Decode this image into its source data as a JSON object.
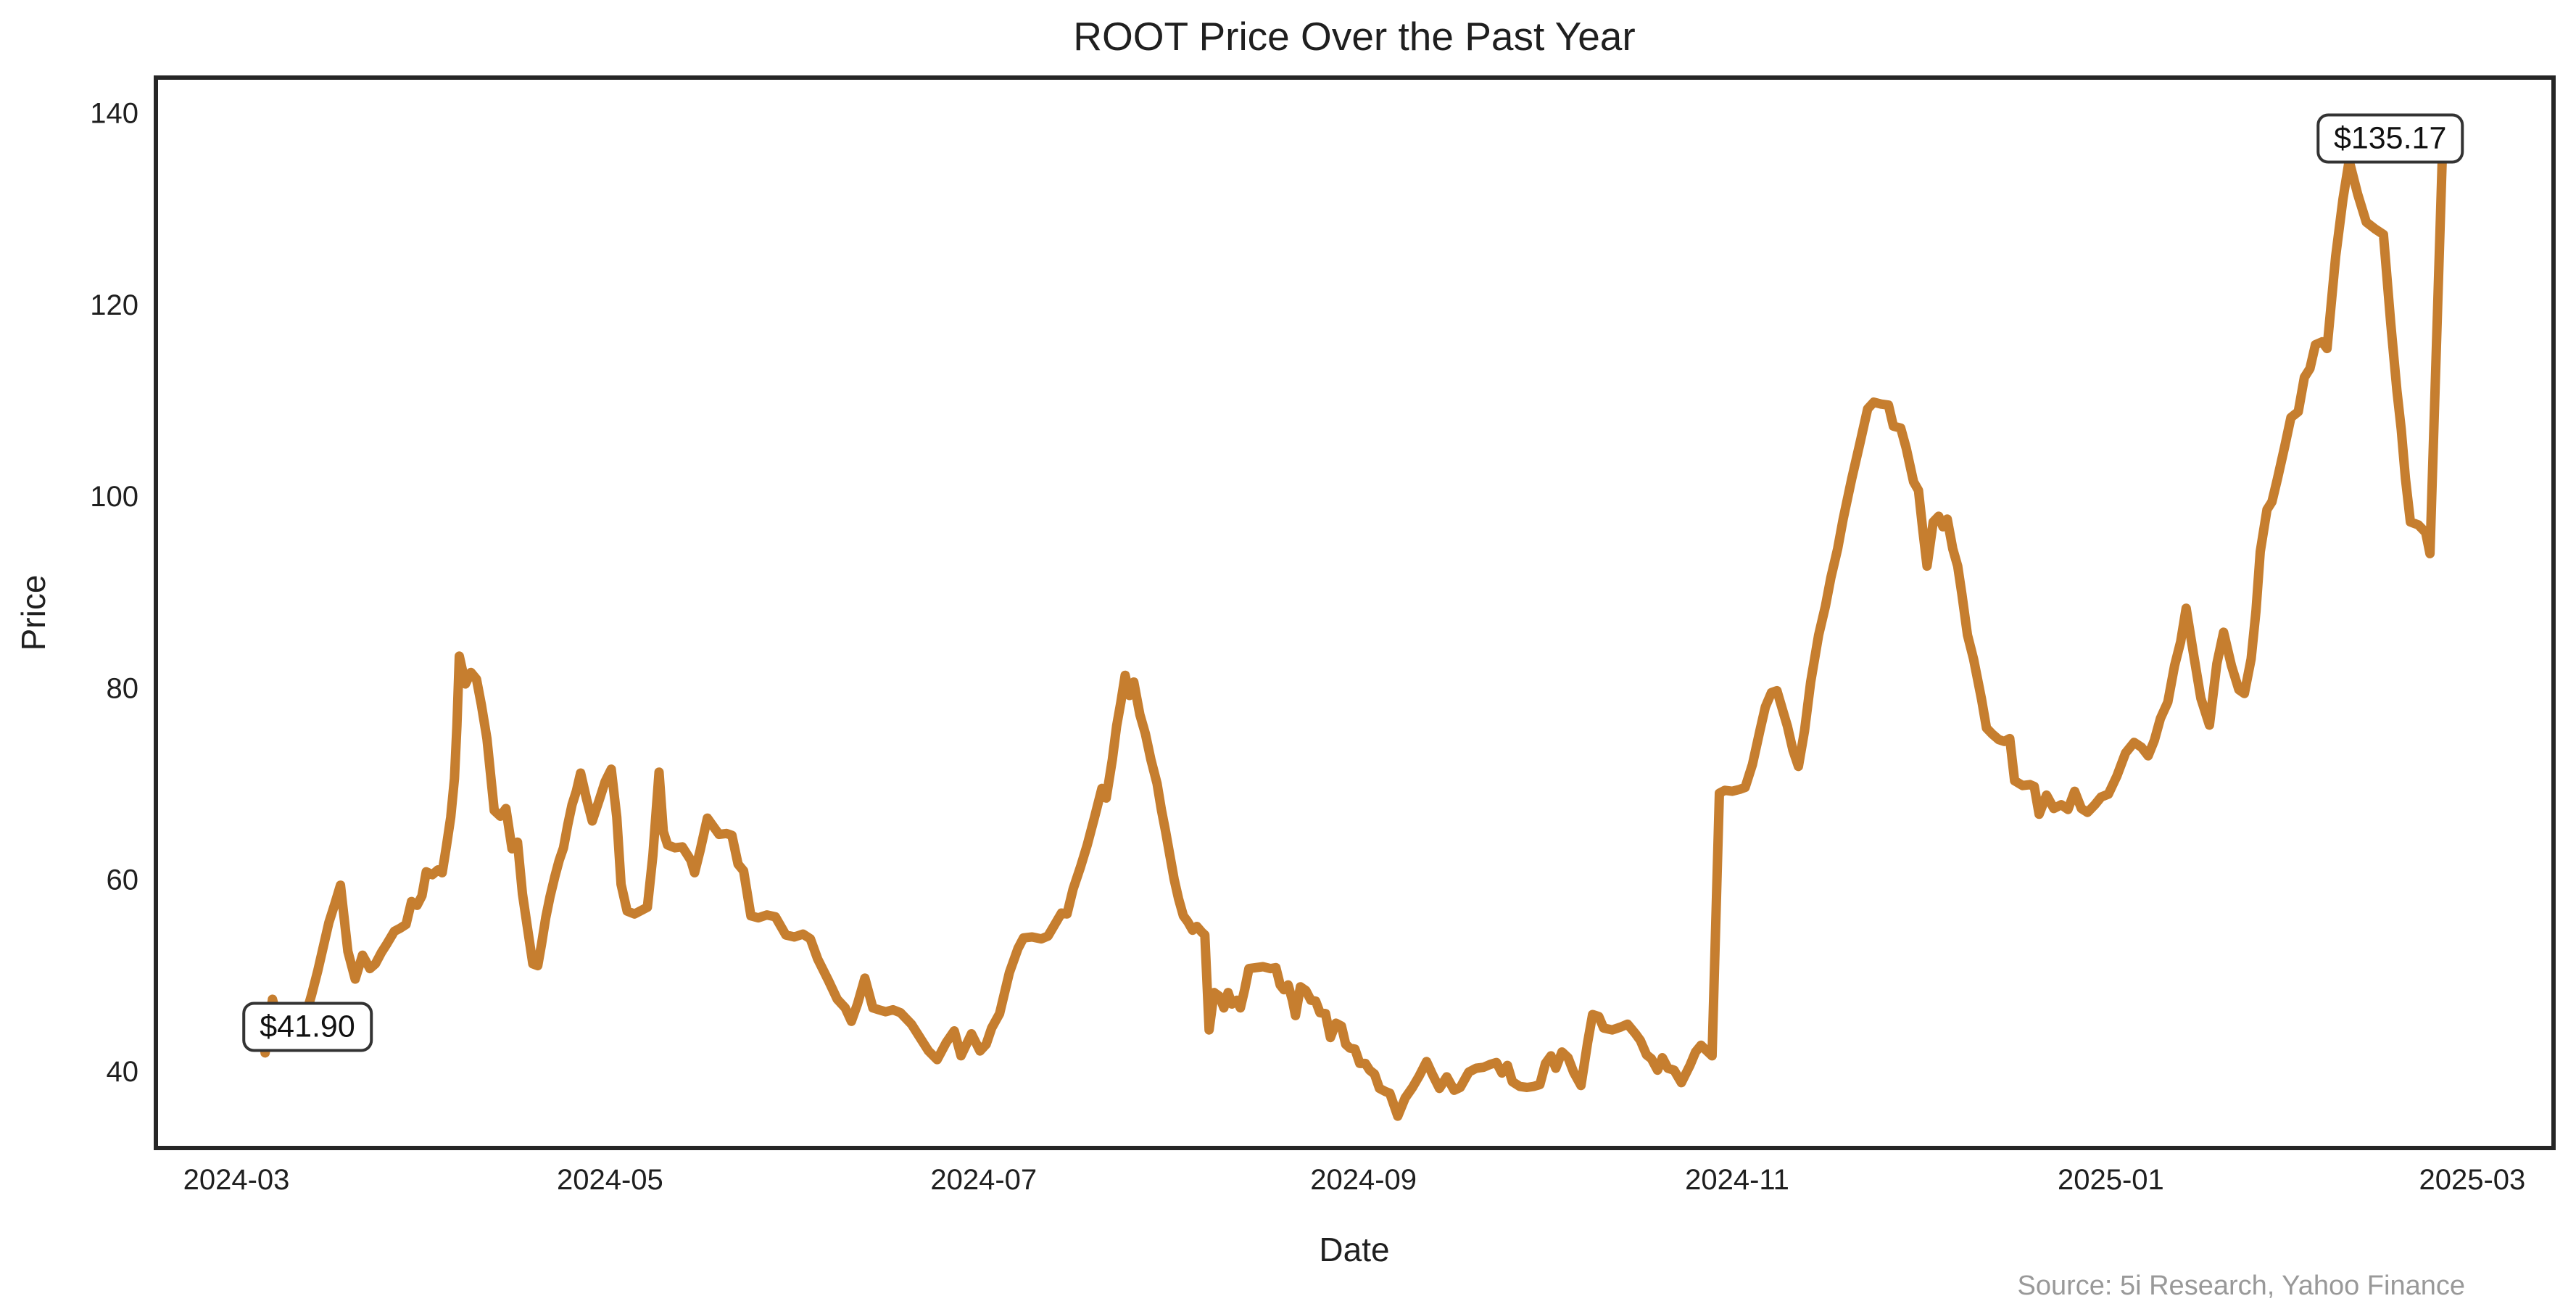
{
  "chart_data": {
    "type": "line",
    "title": "ROOT Price Over the Past Year",
    "xlabel": "Date",
    "ylabel": "Price",
    "source": "Source: 5i Research, Yahoo Finance",
    "legend": null,
    "grid": false,
    "ylim": [
      32,
      143.6
    ],
    "y_ticks": [
      40,
      60,
      80,
      100,
      120,
      140
    ],
    "x_ticks": [
      {
        "label": "2024-03",
        "d": 0
      },
      {
        "label": "2024-05",
        "d": 61
      },
      {
        "label": "2024-07",
        "d": 122
      },
      {
        "label": "2024-09",
        "d": 184
      },
      {
        "label": "2024-11",
        "d": 245
      },
      {
        "label": "2025-01",
        "d": 306
      },
      {
        "label": "2025-03",
        "d": 365
      }
    ],
    "x_origin": "2024-03-01",
    "annotations": [
      {
        "text": "$41.90",
        "d": 11.6,
        "price": 44.6
      },
      {
        "text": "$135.17",
        "d": 351.6,
        "price": 137.3
      }
    ],
    "colors": {
      "line": "#C67E2F",
      "spine": "#262626",
      "text": "#1f1f1f",
      "muted": "#999999",
      "annotation_border": "#333333"
    },
    "series_name": "ROOT close price (USD)",
    "series": [
      [
        3.8,
        46.5
      ],
      [
        4.7,
        41.9
      ],
      [
        5.9,
        47.5
      ],
      [
        6.9,
        45.0
      ],
      [
        8.0,
        45.3
      ],
      [
        9.0,
        44.8
      ],
      [
        10.2,
        45.2
      ],
      [
        11.4,
        46.0
      ],
      [
        12.3,
        48.0
      ],
      [
        13.3,
        50.5
      ],
      [
        14.2,
        53.0
      ],
      [
        15.1,
        55.5
      ],
      [
        16.1,
        57.5
      ],
      [
        17.0,
        59.4
      ],
      [
        18.2,
        52.5
      ],
      [
        19.4,
        49.6
      ],
      [
        20.6,
        52.1
      ],
      [
        21.8,
        50.7
      ],
      [
        22.7,
        51.2
      ],
      [
        23.7,
        52.4
      ],
      [
        24.6,
        53.3
      ],
      [
        25.8,
        54.6
      ],
      [
        26.7,
        54.9
      ],
      [
        27.7,
        55.3
      ],
      [
        28.6,
        57.7
      ],
      [
        29.5,
        57.3
      ],
      [
        30.3,
        58.3
      ],
      [
        31.0,
        60.8
      ],
      [
        32.0,
        60.5
      ],
      [
        32.9,
        61.0
      ],
      [
        33.6,
        60.7
      ],
      [
        34.3,
        63.5
      ],
      [
        35.0,
        66.5
      ],
      [
        35.6,
        70.5
      ],
      [
        36.0,
        76.0
      ],
      [
        36.4,
        83.3
      ],
      [
        37.4,
        80.4
      ],
      [
        38.3,
        81.6
      ],
      [
        39.2,
        80.9
      ],
      [
        40.0,
        78.2
      ],
      [
        40.9,
        74.7
      ],
      [
        42.1,
        67.2
      ],
      [
        43.1,
        66.6
      ],
      [
        44.0,
        67.4
      ],
      [
        45.0,
        63.2
      ],
      [
        45.9,
        63.9
      ],
      [
        46.7,
        58.5
      ],
      [
        47.6,
        54.6
      ],
      [
        48.4,
        51.2
      ],
      [
        49.2,
        51.0
      ],
      [
        49.8,
        53.2
      ],
      [
        50.5,
        56.0
      ],
      [
        51.2,
        58.2
      ],
      [
        52.0,
        60.3
      ],
      [
        52.7,
        62.0
      ],
      [
        53.4,
        63.3
      ],
      [
        54.1,
        65.7
      ],
      [
        54.8,
        67.8
      ],
      [
        55.5,
        69.2
      ],
      [
        56.2,
        71.1
      ],
      [
        57.2,
        68.3
      ],
      [
        58.1,
        66.1
      ],
      [
        59.3,
        68.4
      ],
      [
        60.2,
        70.2
      ],
      [
        61.2,
        71.5
      ],
      [
        62.1,
        66.5
      ],
      [
        62.8,
        59.5
      ],
      [
        63.8,
        56.7
      ],
      [
        65.0,
        56.4
      ],
      [
        66.2,
        56.8
      ],
      [
        67.1,
        57.1
      ],
      [
        68.0,
        62.5
      ],
      [
        69.0,
        71.2
      ],
      [
        69.7,
        65.0
      ],
      [
        70.4,
        63.6
      ],
      [
        71.6,
        63.3
      ],
      [
        72.8,
        63.4
      ],
      [
        74.2,
        62.0
      ],
      [
        74.8,
        60.7
      ],
      [
        75.7,
        63.0
      ],
      [
        76.9,
        66.4
      ],
      [
        77.9,
        65.5
      ],
      [
        78.8,
        64.7
      ],
      [
        80.0,
        64.8
      ],
      [
        80.9,
        64.6
      ],
      [
        81.9,
        61.6
      ],
      [
        82.8,
        60.9
      ],
      [
        84.0,
        56.2
      ],
      [
        85.2,
        56.0
      ],
      [
        86.6,
        56.3
      ],
      [
        88.0,
        56.1
      ],
      [
        89.7,
        54.2
      ],
      [
        91.1,
        54.0
      ],
      [
        92.5,
        54.3
      ],
      [
        93.7,
        53.8
      ],
      [
        94.9,
        51.7
      ],
      [
        96.7,
        49.4
      ],
      [
        98.1,
        47.5
      ],
      [
        99.4,
        46.6
      ],
      [
        100.4,
        45.2
      ],
      [
        101.4,
        47.0
      ],
      [
        102.6,
        49.7
      ],
      [
        103.9,
        46.6
      ],
      [
        104.9,
        46.4
      ],
      [
        106.0,
        46.2
      ],
      [
        107.2,
        46.4
      ],
      [
        108.4,
        46.1
      ],
      [
        110.2,
        44.9
      ],
      [
        111.9,
        43.2
      ],
      [
        113.0,
        42.1
      ],
      [
        114.4,
        41.2
      ],
      [
        115.9,
        43.0
      ],
      [
        117.2,
        44.2
      ],
      [
        118.3,
        41.6
      ],
      [
        120.0,
        43.9
      ],
      [
        121.4,
        42.1
      ],
      [
        122.4,
        42.8
      ],
      [
        123.3,
        44.5
      ],
      [
        124.6,
        46.0
      ],
      [
        126.2,
        50.3
      ],
      [
        127.6,
        52.8
      ],
      [
        128.5,
        53.9
      ],
      [
        129.9,
        54.0
      ],
      [
        131.4,
        53.8
      ],
      [
        132.5,
        54.1
      ],
      [
        133.7,
        55.4
      ],
      [
        134.7,
        56.5
      ],
      [
        135.6,
        56.4
      ],
      [
        136.6,
        59.0
      ],
      [
        137.8,
        61.3
      ],
      [
        138.9,
        63.6
      ],
      [
        140.1,
        66.5
      ],
      [
        141.3,
        69.5
      ],
      [
        142.0,
        68.5
      ],
      [
        143.0,
        72.5
      ],
      [
        143.7,
        76.0
      ],
      [
        144.4,
        78.5
      ],
      [
        145.1,
        81.3
      ],
      [
        145.8,
        79.2
      ],
      [
        146.5,
        80.6
      ],
      [
        147.5,
        77.2
      ],
      [
        148.4,
        75.2
      ],
      [
        149.3,
        72.5
      ],
      [
        150.3,
        70.0
      ],
      [
        151.0,
        67.3
      ],
      [
        151.7,
        65.0
      ],
      [
        152.4,
        62.5
      ],
      [
        153.1,
        60.0
      ],
      [
        153.8,
        58.0
      ],
      [
        154.6,
        56.2
      ],
      [
        155.3,
        55.6
      ],
      [
        156.1,
        54.7
      ],
      [
        156.8,
        55.1
      ],
      [
        157.6,
        54.5
      ],
      [
        158.1,
        54.2
      ],
      [
        158.8,
        44.3
      ],
      [
        159.6,
        48.2
      ],
      [
        160.5,
        47.8
      ],
      [
        161.2,
        46.6
      ],
      [
        161.9,
        48.2
      ],
      [
        162.5,
        47.0
      ],
      [
        163.3,
        47.4
      ],
      [
        163.9,
        46.6
      ],
      [
        164.6,
        48.5
      ],
      [
        165.3,
        50.7
      ],
      [
        166.4,
        50.8
      ],
      [
        167.6,
        50.9
      ],
      [
        168.8,
        50.7
      ],
      [
        169.7,
        50.8
      ],
      [
        170.4,
        49.0
      ],
      [
        171.0,
        48.5
      ],
      [
        171.7,
        49.0
      ],
      [
        172.4,
        47.4
      ],
      [
        172.9,
        45.8
      ],
      [
        173.7,
        48.8
      ],
      [
        174.6,
        48.4
      ],
      [
        175.4,
        47.4
      ],
      [
        176.2,
        47.3
      ],
      [
        176.9,
        46.1
      ],
      [
        177.8,
        46.0
      ],
      [
        178.6,
        43.5
      ],
      [
        179.5,
        45.0
      ],
      [
        180.4,
        44.7
      ],
      [
        181.1,
        42.8
      ],
      [
        181.8,
        42.4
      ],
      [
        182.6,
        42.3
      ],
      [
        183.4,
        40.8
      ],
      [
        184.3,
        40.8
      ],
      [
        185.0,
        40.1
      ],
      [
        185.8,
        39.7
      ],
      [
        186.6,
        38.2
      ],
      [
        187.5,
        37.9
      ],
      [
        188.3,
        37.7
      ],
      [
        189.6,
        35.3
      ],
      [
        190.8,
        37.2
      ],
      [
        192.0,
        38.3
      ],
      [
        193.1,
        39.5
      ],
      [
        194.3,
        41.0
      ],
      [
        195.3,
        39.6
      ],
      [
        196.4,
        38.2
      ],
      [
        197.6,
        39.4
      ],
      [
        198.8,
        38.0
      ],
      [
        199.8,
        38.3
      ],
      [
        201.2,
        39.9
      ],
      [
        202.4,
        40.3
      ],
      [
        203.6,
        40.4
      ],
      [
        204.7,
        40.7
      ],
      [
        205.7,
        40.9
      ],
      [
        206.6,
        39.8
      ],
      [
        207.5,
        40.6
      ],
      [
        208.3,
        38.9
      ],
      [
        209.5,
        38.4
      ],
      [
        210.7,
        38.3
      ],
      [
        211.8,
        38.4
      ],
      [
        212.8,
        38.6
      ],
      [
        213.7,
        40.8
      ],
      [
        214.6,
        41.6
      ],
      [
        215.4,
        40.3
      ],
      [
        216.4,
        42.0
      ],
      [
        217.4,
        41.4
      ],
      [
        218.3,
        39.9
      ],
      [
        219.5,
        38.5
      ],
      [
        220.6,
        43.0
      ],
      [
        221.4,
        45.9
      ],
      [
        222.4,
        45.7
      ],
      [
        223.2,
        44.5
      ],
      [
        224.6,
        44.3
      ],
      [
        226.0,
        44.6
      ],
      [
        227.1,
        44.9
      ],
      [
        228.4,
        43.9
      ],
      [
        229.2,
        43.2
      ],
      [
        230.2,
        41.7
      ],
      [
        231.0,
        41.3
      ],
      [
        232.0,
        40.1
      ],
      [
        232.8,
        41.4
      ],
      [
        233.7,
        40.3
      ],
      [
        234.7,
        40.1
      ],
      [
        235.9,
        38.8
      ],
      [
        237.3,
        40.6
      ],
      [
        238.2,
        42.0
      ],
      [
        239.1,
        42.7
      ],
      [
        239.9,
        42.2
      ],
      [
        240.9,
        41.6
      ],
      [
        242.1,
        69.0
      ],
      [
        243.0,
        69.3
      ],
      [
        244.2,
        69.2
      ],
      [
        245.4,
        69.4
      ],
      [
        246.3,
        69.6
      ],
      [
        247.5,
        72.0
      ],
      [
        248.7,
        75.5
      ],
      [
        249.6,
        78.0
      ],
      [
        250.6,
        79.5
      ],
      [
        251.5,
        79.7
      ],
      [
        252.5,
        77.5
      ],
      [
        253.2,
        76.0
      ],
      [
        254.1,
        73.5
      ],
      [
        255.0,
        71.8
      ],
      [
        256.0,
        75.5
      ],
      [
        257.0,
        80.6
      ],
      [
        258.3,
        85.5
      ],
      [
        259.4,
        88.5
      ],
      [
        260.3,
        91.5
      ],
      [
        261.4,
        94.5
      ],
      [
        262.3,
        97.6
      ],
      [
        263.7,
        101.8
      ],
      [
        265.0,
        105.4
      ],
      [
        266.3,
        109.1
      ],
      [
        267.3,
        109.8
      ],
      [
        268.5,
        109.6
      ],
      [
        269.7,
        109.5
      ],
      [
        270.5,
        107.3
      ],
      [
        271.7,
        107.1
      ],
      [
        272.6,
        105.0
      ],
      [
        273.8,
        101.5
      ],
      [
        274.6,
        100.6
      ],
      [
        275.3,
        96.5
      ],
      [
        276.0,
        92.7
      ],
      [
        277.0,
        97.3
      ],
      [
        277.9,
        97.9
      ],
      [
        278.6,
        96.8
      ],
      [
        279.3,
        97.6
      ],
      [
        280.2,
        94.5
      ],
      [
        281.0,
        92.7
      ],
      [
        281.7,
        89.7
      ],
      [
        282.6,
        85.5
      ],
      [
        283.6,
        83.0
      ],
      [
        284.9,
        78.8
      ],
      [
        285.7,
        75.8
      ],
      [
        286.6,
        75.2
      ],
      [
        287.7,
        74.6
      ],
      [
        288.6,
        74.4
      ],
      [
        289.5,
        74.7
      ],
      [
        290.3,
        70.3
      ],
      [
        291.6,
        69.8
      ],
      [
        292.8,
        69.9
      ],
      [
        293.5,
        69.7
      ],
      [
        294.3,
        66.8
      ],
      [
        295.5,
        68.8
      ],
      [
        296.7,
        67.4
      ],
      [
        297.9,
        67.8
      ],
      [
        299.0,
        67.3
      ],
      [
        300.1,
        69.2
      ],
      [
        301.2,
        67.4
      ],
      [
        302.2,
        67.0
      ],
      [
        303.4,
        67.8
      ],
      [
        304.4,
        68.6
      ],
      [
        305.6,
        68.9
      ],
      [
        307.0,
        70.8
      ],
      [
        308.4,
        73.2
      ],
      [
        309.8,
        74.3
      ],
      [
        311.0,
        73.8
      ],
      [
        312.1,
        72.9
      ],
      [
        313.1,
        74.5
      ],
      [
        314.1,
        76.8
      ],
      [
        315.3,
        78.5
      ],
      [
        316.4,
        82.3
      ],
      [
        317.4,
        84.8
      ],
      [
        318.3,
        88.3
      ],
      [
        319.5,
        83.5
      ],
      [
        320.7,
        78.9
      ],
      [
        322.1,
        76.1
      ],
      [
        323.3,
        82.5
      ],
      [
        324.4,
        85.8
      ],
      [
        325.7,
        82.3
      ],
      [
        326.9,
        79.8
      ],
      [
        327.8,
        79.4
      ],
      [
        328.9,
        83.0
      ],
      [
        329.7,
        88.0
      ],
      [
        330.4,
        94.2
      ],
      [
        331.5,
        98.6
      ],
      [
        332.3,
        99.4
      ],
      [
        333.2,
        101.8
      ],
      [
        334.4,
        105.2
      ],
      [
        335.4,
        108.2
      ],
      [
        336.6,
        108.8
      ],
      [
        337.6,
        112.4
      ],
      [
        338.5,
        113.3
      ],
      [
        339.4,
        115.8
      ],
      [
        340.5,
        116.1
      ],
      [
        341.3,
        115.4
      ],
      [
        342.7,
        125.0
      ],
      [
        343.9,
        131.0
      ],
      [
        344.9,
        135.0
      ],
      [
        346.3,
        131.5
      ],
      [
        347.7,
        128.6
      ],
      [
        349.1,
        127.9
      ],
      [
        350.5,
        127.3
      ],
      [
        351.7,
        118.0
      ],
      [
        352.7,
        111.0
      ],
      [
        353.4,
        107.0
      ],
      [
        354.1,
        101.8
      ],
      [
        354.9,
        97.3
      ],
      [
        356.2,
        97.0
      ],
      [
        357.4,
        96.2
      ],
      [
        358.1,
        94.0
      ],
      [
        360.1,
        135.17
      ]
    ]
  }
}
